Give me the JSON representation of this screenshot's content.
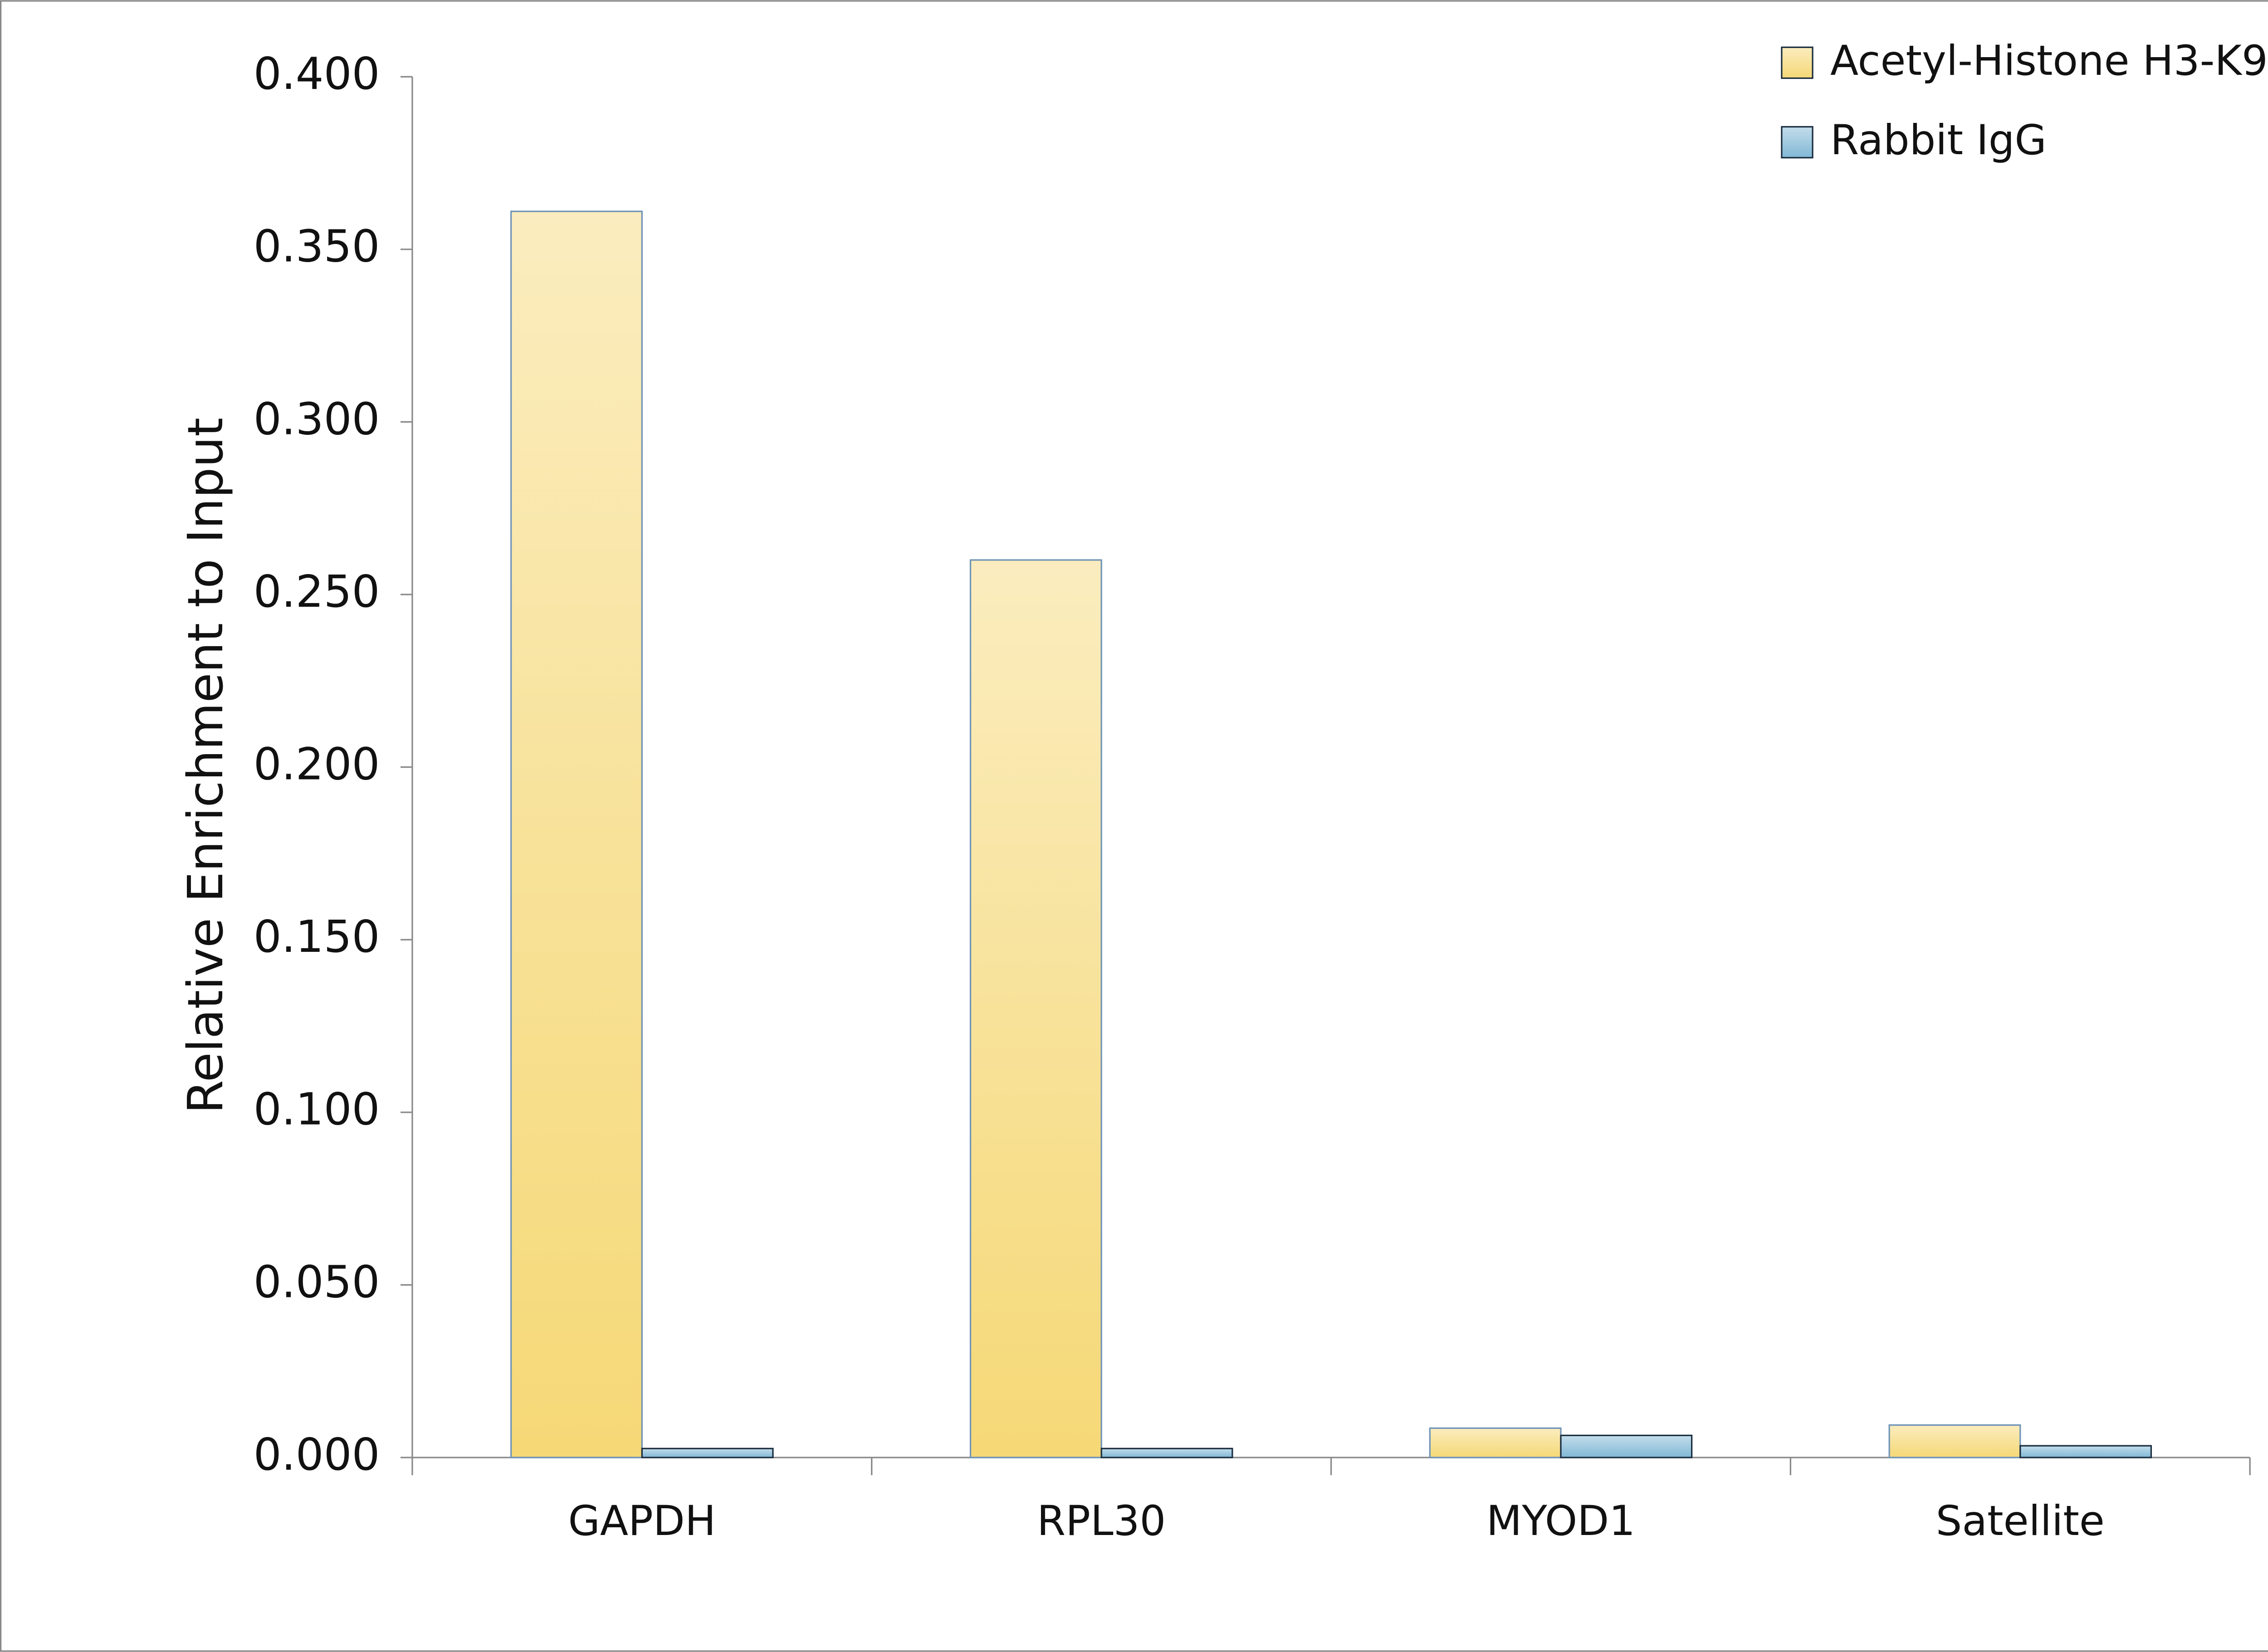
{
  "chart_data": {
    "type": "bar",
    "y_label": "Relative Enrichment to Input",
    "categories": [
      "GAPDH",
      "RPL30",
      "MYOD1",
      "Satellite"
    ],
    "series": [
      {
        "name": "Acetyl-Histone H3-K9",
        "color": "#f5d66f",
        "values": [
          0.361,
          0.26,
          0.0085,
          0.0094
        ]
      },
      {
        "name": "Rabbit IgG",
        "color": "#7ab4d3",
        "values": [
          0.0026,
          0.0026,
          0.0064,
          0.0034
        ]
      }
    ],
    "ylim": [
      0,
      0.4
    ],
    "yticks": [
      {
        "value": 0,
        "label": "0.000"
      },
      {
        "value": 0.05,
        "label": "0.050"
      },
      {
        "value": 0.1,
        "label": "0.100"
      },
      {
        "value": 0.15,
        "label": "0.150"
      },
      {
        "value": 0.2,
        "label": "0.200"
      },
      {
        "value": 0.25,
        "label": "0.250"
      },
      {
        "value": 0.3,
        "label": "0.300"
      },
      {
        "value": 0.35,
        "label": "0.350"
      },
      {
        "value": 0.4,
        "label": "0.400"
      }
    ],
    "legend": "top-right"
  }
}
